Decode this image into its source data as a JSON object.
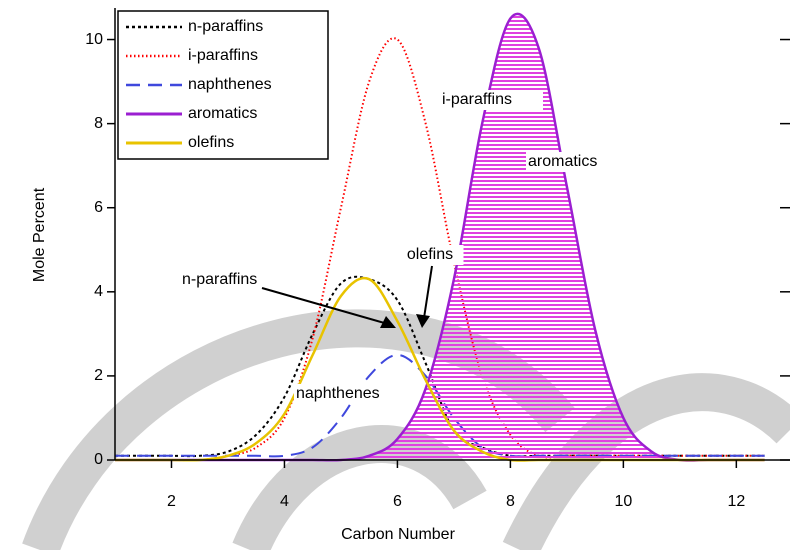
{
  "chart_data": {
    "type": "line",
    "xlabel": "Carbon Number",
    "ylabel": "Mole Percent",
    "x": [
      1,
      1.5,
      2,
      2.5,
      3,
      3.5,
      4,
      4.5,
      5,
      5.5,
      6,
      6.5,
      7,
      7.5,
      8,
      8.5,
      9,
      9.5,
      10,
      10.5,
      11,
      11.5,
      12,
      12.5
    ],
    "series": [
      {
        "name": "n-paraffins",
        "color": "#000000",
        "dash": "dotted",
        "values": [
          0.1,
          0.1,
          0.1,
          0.1,
          0.2,
          0.6,
          1.5,
          3.0,
          4.2,
          4.3,
          3.8,
          2.3,
          0.7,
          0.3,
          0.1,
          0.1,
          0.1,
          0.1,
          0.1,
          0.1,
          0.1,
          0.1,
          0.1,
          0.1
        ]
      },
      {
        "name": "i-paraffins",
        "color": "#ff0000",
        "dash": "fine-dotted",
        "values": [
          0,
          0,
          0,
          0,
          0.1,
          0.3,
          1.0,
          2.9,
          6.0,
          9.0,
          10.0,
          8.0,
          4.7,
          2.0,
          0.6,
          0.1,
          0.1,
          0.1,
          0.1,
          0.1,
          0.1,
          0.1,
          0.1,
          0.1
        ]
      },
      {
        "name": "naphthenes",
        "color": "#3f48dd",
        "dash": "dashed",
        "values": [
          0.1,
          0.1,
          0.1,
          0.1,
          0.1,
          0.1,
          0.1,
          0.3,
          1.0,
          2.0,
          2.5,
          2.0,
          1.0,
          0.3,
          0.1,
          0.1,
          0.1,
          0.1,
          0.1,
          0.1,
          0.1,
          0.1,
          0.1,
          0.1
        ]
      },
      {
        "name": "aromatics",
        "color": "#9b1fd1",
        "dash": "solid",
        "hatch": true,
        "values": [
          0,
          0,
          0,
          0,
          0,
          0,
          0,
          0,
          0,
          0.1,
          0.5,
          1.7,
          4.3,
          8.0,
          10.5,
          9.8,
          6.5,
          3.1,
          1.0,
          0.2,
          0,
          0,
          0,
          0
        ]
      },
      {
        "name": "olefins",
        "color": "#e8c300",
        "dash": "solid",
        "values": [
          0,
          0,
          0,
          0,
          0.1,
          0.4,
          1.1,
          2.5,
          3.9,
          4.3,
          3.3,
          1.9,
          0.7,
          0.2,
          0,
          0,
          0,
          0,
          0,
          0,
          0,
          0,
          0,
          0
        ]
      }
    ],
    "annotations": [
      "i-paraffins",
      "aromatics",
      "olefins",
      "n-paraffins",
      "naphthenes"
    ],
    "xlim": [
      1,
      12.95
    ],
    "ylim": [
      0,
      10.75
    ],
    "xticks": [
      2,
      4,
      6,
      8,
      10,
      12
    ],
    "yticks": [
      0,
      2,
      4,
      6,
      8,
      10
    ],
    "legend": "upper-left",
    "grid": false
  }
}
